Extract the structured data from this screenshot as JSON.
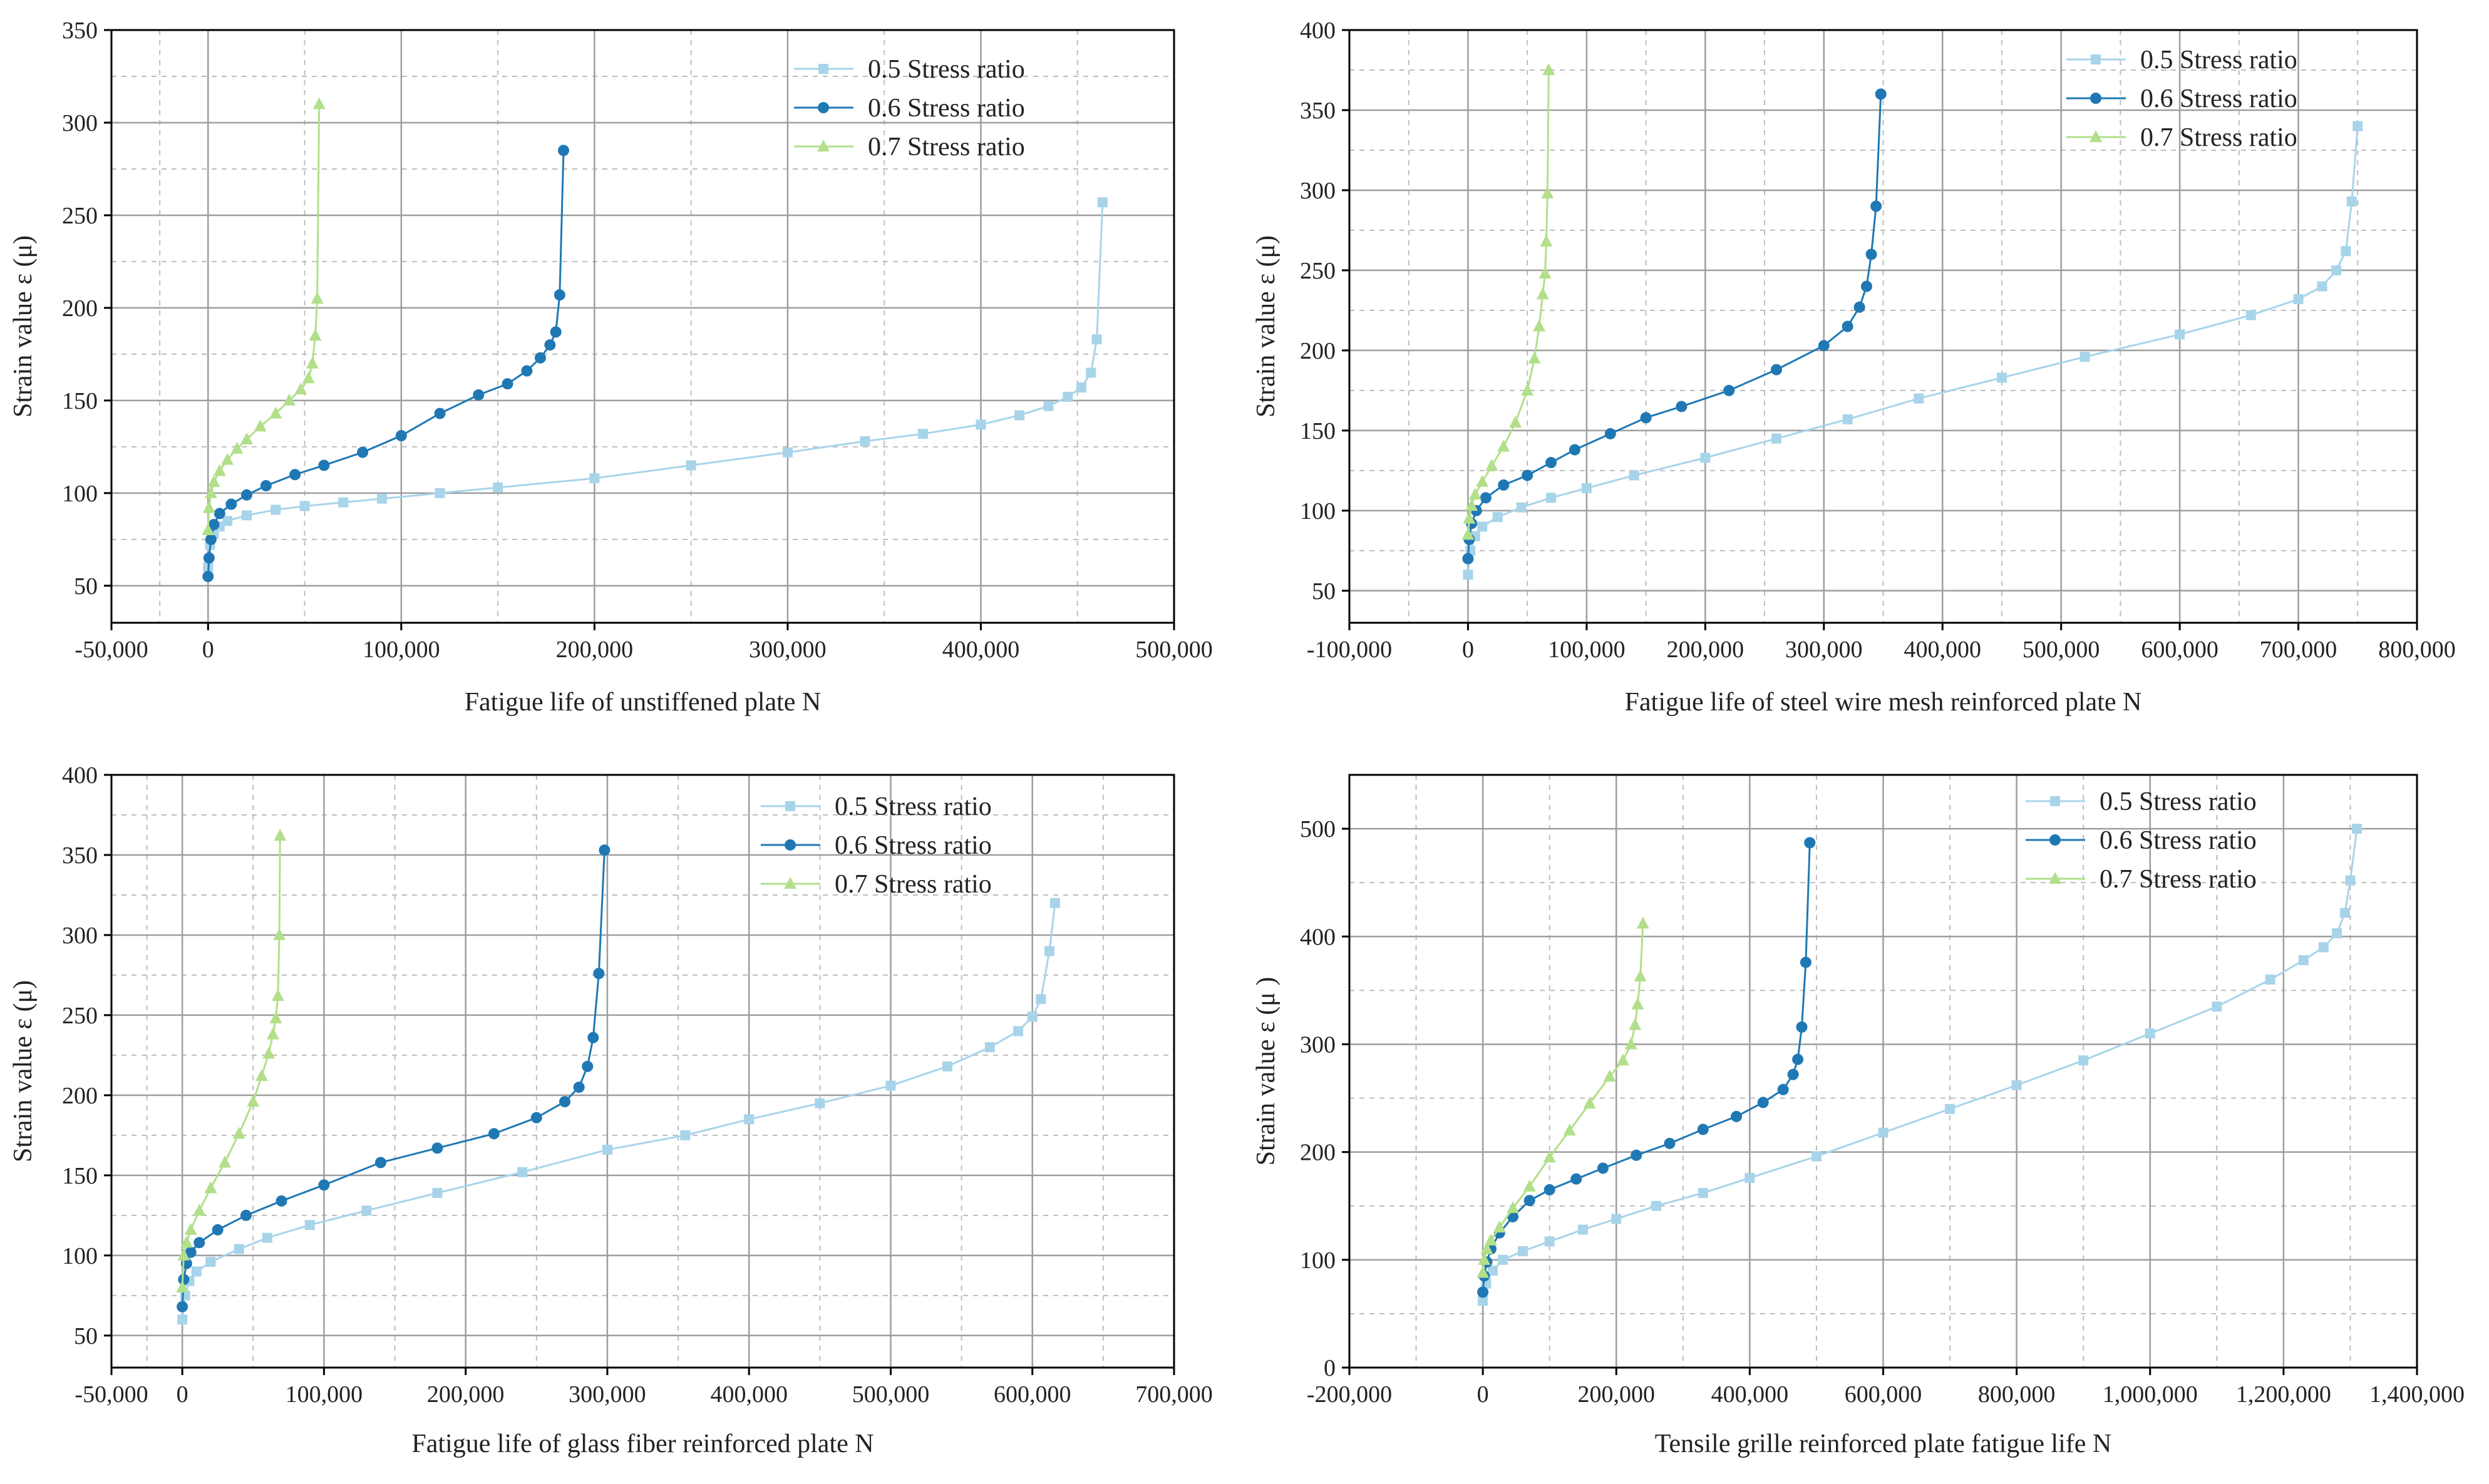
{
  "colors": {
    "s05": "#a8d4ea",
    "s06": "#1f78b4",
    "s07": "#b2df8a",
    "grid": "#bdbdbd",
    "axis": "#000000"
  },
  "chart_data": [
    {
      "type": "line",
      "xlabel": "Fatigue life of unstiffened plate N",
      "ylabel": "Strain value ε (μ)",
      "xlim": [
        -50000,
        500000
      ],
      "ylim": [
        30,
        350
      ],
      "xticks": [
        -50000,
        0,
        100000,
        200000,
        300000,
        400000,
        500000
      ],
      "xtick_labels": [
        "-50,000",
        "0",
        "100,000",
        "200,000",
        "300,000",
        "400,000",
        "500,000"
      ],
      "yticks": [
        50,
        100,
        150,
        200,
        250,
        300,
        350
      ],
      "ytick_labels": [
        "50",
        "100",
        "150",
        "200",
        "250",
        "300",
        "350"
      ],
      "legend_position": "top-right",
      "series": [
        {
          "name": "0.5 Stress ratio",
          "color_key": "s05",
          "marker": "square",
          "x": [
            0,
            1000,
            3000,
            6000,
            10000,
            20000,
            35000,
            50000,
            70000,
            90000,
            120000,
            150000,
            200000,
            250000,
            300000,
            340000,
            370000,
            400000,
            420000,
            435000,
            445000,
            452000,
            457000,
            460000,
            463000
          ],
          "y": [
            60,
            72,
            78,
            82,
            85,
            88,
            91,
            93,
            95,
            97,
            100,
            103,
            108,
            115,
            122,
            128,
            132,
            137,
            142,
            147,
            152,
            157,
            165,
            183,
            257
          ]
        },
        {
          "name": "0.6 Stress ratio",
          "color_key": "s06",
          "marker": "circle",
          "x": [
            0,
            500,
            1500,
            3000,
            6000,
            12000,
            20000,
            30000,
            45000,
            60000,
            80000,
            100000,
            120000,
            140000,
            155000,
            165000,
            172000,
            177000,
            180000,
            182000,
            184000
          ],
          "y": [
            55,
            65,
            75,
            83,
            89,
            94,
            99,
            104,
            110,
            115,
            122,
            131,
            143,
            153,
            159,
            166,
            173,
            180,
            187,
            207,
            285
          ]
        },
        {
          "name": "0.7 Stress ratio",
          "color_key": "s07",
          "marker": "triangle",
          "x": [
            0,
            500,
            1500,
            3000,
            6000,
            10000,
            15000,
            20000,
            27000,
            35000,
            42000,
            48000,
            52000,
            54000,
            55500,
            56500,
            57500
          ],
          "y": [
            80,
            92,
            100,
            106,
            112,
            118,
            124,
            129,
            136,
            143,
            150,
            156,
            162,
            170,
            185,
            205,
            310
          ]
        }
      ]
    },
    {
      "type": "line",
      "xlabel": "Fatigue life of steel wire mesh reinforced plate N",
      "ylabel": "Strain value ε (μ)",
      "xlim": [
        -100000,
        800000
      ],
      "ylim": [
        30,
        400
      ],
      "xticks": [
        -100000,
        0,
        100000,
        200000,
        300000,
        400000,
        500000,
        600000,
        700000,
        800000
      ],
      "xtick_labels": [
        "-100,000",
        "0",
        "100,000",
        "200,000",
        "300,000",
        "400,000",
        "500,000",
        "600,000",
        "700,000",
        "800,000"
      ],
      "yticks": [
        50,
        100,
        150,
        200,
        250,
        300,
        350,
        400
      ],
      "ytick_labels": [
        "50",
        "100",
        "150",
        "200",
        "250",
        "300",
        "350",
        "400"
      ],
      "legend_position": "top-right",
      "series": [
        {
          "name": "0.5 Stress ratio",
          "color_key": "s05",
          "marker": "square",
          "x": [
            0,
            2000,
            6000,
            12000,
            25000,
            45000,
            70000,
            100000,
            140000,
            200000,
            260000,
            320000,
            380000,
            450000,
            520000,
            600000,
            660000,
            700000,
            720000,
            732000,
            740000,
            745000,
            750000
          ],
          "y": [
            60,
            75,
            84,
            90,
            96,
            102,
            108,
            114,
            122,
            133,
            145,
            157,
            170,
            183,
            196,
            210,
            222,
            232,
            240,
            250,
            262,
            293,
            340
          ]
        },
        {
          "name": "0.6 Stress ratio",
          "color_key": "s06",
          "marker": "circle",
          "x": [
            0,
            1000,
            3000,
            7000,
            15000,
            30000,
            50000,
            70000,
            90000,
            120000,
            150000,
            180000,
            220000,
            260000,
            300000,
            320000,
            330000,
            336000,
            340000,
            344000,
            348000
          ],
          "y": [
            70,
            82,
            92,
            100,
            108,
            116,
            122,
            130,
            138,
            148,
            158,
            165,
            175,
            188,
            203,
            215,
            227,
            240,
            260,
            290,
            360
          ]
        },
        {
          "name": "0.7 Stress ratio",
          "color_key": "s07",
          "marker": "triangle",
          "x": [
            0,
            1000,
            3000,
            6000,
            12000,
            20000,
            30000,
            40000,
            50000,
            56000,
            60000,
            63000,
            65000,
            66000,
            67000,
            68000
          ],
          "y": [
            85,
            95,
            103,
            110,
            118,
            128,
            140,
            155,
            175,
            195,
            215,
            235,
            248,
            268,
            298,
            375
          ]
        }
      ]
    },
    {
      "type": "line",
      "xlabel": "Fatigue life of glass fiber reinforced plate N",
      "ylabel": "Strain value ε (μ)",
      "xlim": [
        -50000,
        700000
      ],
      "ylim": [
        30,
        400
      ],
      "xticks": [
        -50000,
        0,
        100000,
        200000,
        300000,
        400000,
        500000,
        600000,
        700000
      ],
      "xtick_labels": [
        "-50,000",
        "0",
        "100,000",
        "200,000",
        "300,000",
        "400,000",
        "500,000",
        "600,000",
        "700,000"
      ],
      "yticks": [
        50,
        100,
        150,
        200,
        250,
        300,
        350,
        400
      ],
      "ytick_labels": [
        "50",
        "100",
        "150",
        "200",
        "250",
        "300",
        "350",
        "400"
      ],
      "legend_position": "top-right",
      "series": [
        {
          "name": "0.5 Stress ratio",
          "color_key": "s05",
          "marker": "square",
          "x": [
            0,
            2000,
            5000,
            10000,
            20000,
            40000,
            60000,
            90000,
            130000,
            180000,
            240000,
            300000,
            355000,
            400000,
            450000,
            500000,
            540000,
            570000,
            590000,
            600000,
            606000,
            612000,
            616000
          ],
          "y": [
            60,
            75,
            84,
            90,
            96,
            104,
            111,
            119,
            128,
            139,
            152,
            166,
            175,
            185,
            195,
            206,
            218,
            230,
            240,
            249,
            260,
            290,
            320
          ]
        },
        {
          "name": "0.6 Stress ratio",
          "color_key": "s06",
          "marker": "circle",
          "x": [
            0,
            1000,
            3000,
            6000,
            12000,
            25000,
            45000,
            70000,
            100000,
            140000,
            180000,
            220000,
            250000,
            270000,
            280000,
            286000,
            290000,
            294000,
            298000
          ],
          "y": [
            68,
            85,
            95,
            102,
            108,
            116,
            125,
            134,
            144,
            158,
            167,
            176,
            186,
            196,
            205,
            218,
            236,
            276,
            353
          ]
        },
        {
          "name": "0.7 Stress ratio",
          "color_key": "s07",
          "marker": "triangle",
          "x": [
            0,
            1000,
            3000,
            6000,
            12000,
            20000,
            30000,
            40000,
            50000,
            56000,
            61000,
            64000,
            66000,
            67500,
            68500,
            69000
          ],
          "y": [
            80,
            100,
            108,
            116,
            128,
            142,
            158,
            176,
            196,
            212,
            226,
            238,
            248,
            262,
            300,
            362
          ]
        }
      ]
    },
    {
      "type": "line",
      "xlabel": "Tensile grille reinforced plate fatigue life N",
      "ylabel": "Strain value ε (μ )",
      "xlim": [
        -200000,
        1400000
      ],
      "ylim": [
        0,
        550
      ],
      "xticks": [
        -200000,
        0,
        200000,
        400000,
        600000,
        800000,
        1000000,
        1200000,
        1400000
      ],
      "xtick_labels": [
        "-200,000",
        "0",
        "200,000",
        "400,000",
        "600,000",
        "800,000",
        "1,000,000",
        "1,200,000",
        "1,400,000"
      ],
      "yticks": [
        0,
        100,
        200,
        300,
        400,
        500
      ],
      "ytick_labels": [
        "0",
        "100",
        "200",
        "300",
        "400",
        "500"
      ],
      "legend_position": "top-right",
      "series": [
        {
          "name": "0.5 Stress ratio",
          "color_key": "s05",
          "marker": "square",
          "x": [
            0,
            5000,
            15000,
            30000,
            60000,
            100000,
            150000,
            200000,
            260000,
            330000,
            400000,
            500000,
            600000,
            700000,
            800000,
            900000,
            1000000,
            1100000,
            1180000,
            1230000,
            1260000,
            1280000,
            1292000,
            1300000,
            1310000
          ],
          "y": [
            62,
            78,
            90,
            100,
            108,
            117,
            128,
            138,
            150,
            162,
            176,
            196,
            218,
            240,
            262,
            285,
            310,
            335,
            360,
            378,
            390,
            403,
            422,
            452,
            500
          ]
        },
        {
          "name": "0.6 Stress ratio",
          "color_key": "s06",
          "marker": "circle",
          "x": [
            0,
            2000,
            6000,
            12000,
            25000,
            45000,
            70000,
            100000,
            140000,
            180000,
            230000,
            280000,
            330000,
            380000,
            420000,
            450000,
            465000,
            472000,
            478000,
            484000,
            490000
          ],
          "y": [
            70,
            85,
            98,
            110,
            125,
            140,
            155,
            165,
            175,
            185,
            197,
            208,
            221,
            233,
            246,
            258,
            272,
            286,
            316,
            376,
            487
          ]
        },
        {
          "name": "0.7 Stress ratio",
          "color_key": "s07",
          "marker": "triangle",
          "x": [
            0,
            2000,
            6000,
            12000,
            25000,
            45000,
            70000,
            100000,
            130000,
            160000,
            190000,
            210000,
            222000,
            228000,
            232000,
            236000,
            240000
          ],
          "y": [
            88,
            100,
            110,
            118,
            130,
            148,
            168,
            195,
            220,
            245,
            270,
            285,
            300,
            318,
            337,
            363,
            412
          ]
        }
      ]
    }
  ],
  "extra_series_points_note": ""
}
